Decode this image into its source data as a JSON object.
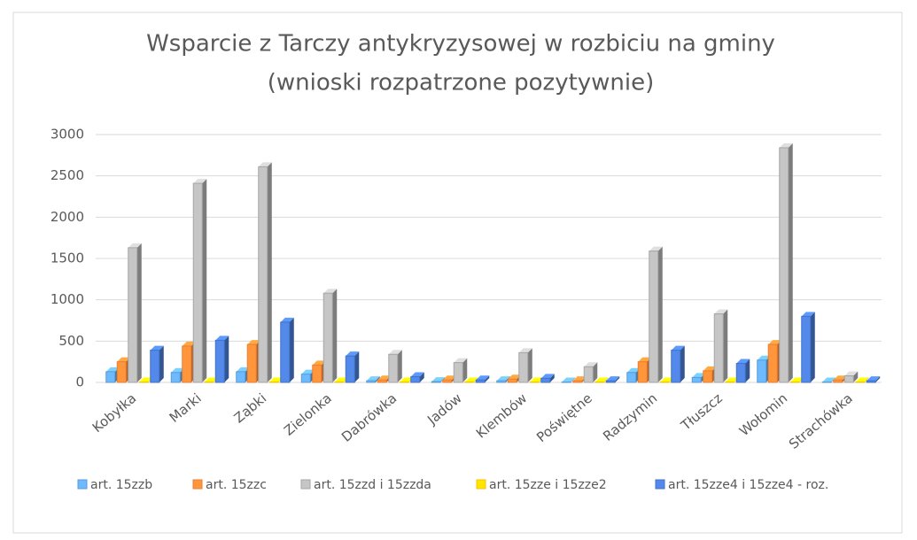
{
  "chart_data": {
    "type": "bar3d",
    "title": [
      "Wsparcie z Tarczy antykryzysowej w rozbiciu na gminy",
      "(wnioski rozpatrzone pozytywnie)"
    ],
    "categories": [
      "Kobyłka",
      "Marki",
      "Ząbki",
      "Zielonka",
      "Dabrówka",
      "Jadów",
      "Klembów",
      "Poświętne",
      "Radzymin",
      "Tłuszcz",
      "Wołomin",
      "Strachówka"
    ],
    "series": [
      {
        "name": "art. 15zzb",
        "color": "#5b9bd5",
        "values": [
          130,
          120,
          130,
          100,
          20,
          10,
          20,
          5,
          120,
          60,
          270,
          5
        ]
      },
      {
        "name": "art. 15zzc",
        "color": "#ed7d31",
        "values": [
          250,
          440,
          460,
          210,
          30,
          30,
          40,
          20,
          250,
          140,
          460,
          30
        ]
      },
      {
        "name": "art. 15zzd i 15zzda",
        "color": "#a5a5a5",
        "values": [
          1630,
          2410,
          2610,
          1080,
          340,
          240,
          360,
          190,
          1590,
          830,
          2840,
          80
        ]
      },
      {
        "name": "art. 15zze i 15zze2",
        "color": "#ffc000",
        "values": [
          5,
          5,
          5,
          5,
          5,
          5,
          5,
          5,
          5,
          5,
          5,
          5
        ]
      },
      {
        "name": "art. 15zze4 i 15zze4 - roz.",
        "color": "#4472c4",
        "values": [
          390,
          510,
          730,
          320,
          70,
          30,
          50,
          20,
          390,
          230,
          800,
          20
        ]
      }
    ],
    "ylim": [
      0,
      3000
    ],
    "yticks": [
      0,
      500,
      1000,
      1500,
      2000,
      2500,
      3000
    ],
    "grid": true,
    "legend": "bottom"
  }
}
